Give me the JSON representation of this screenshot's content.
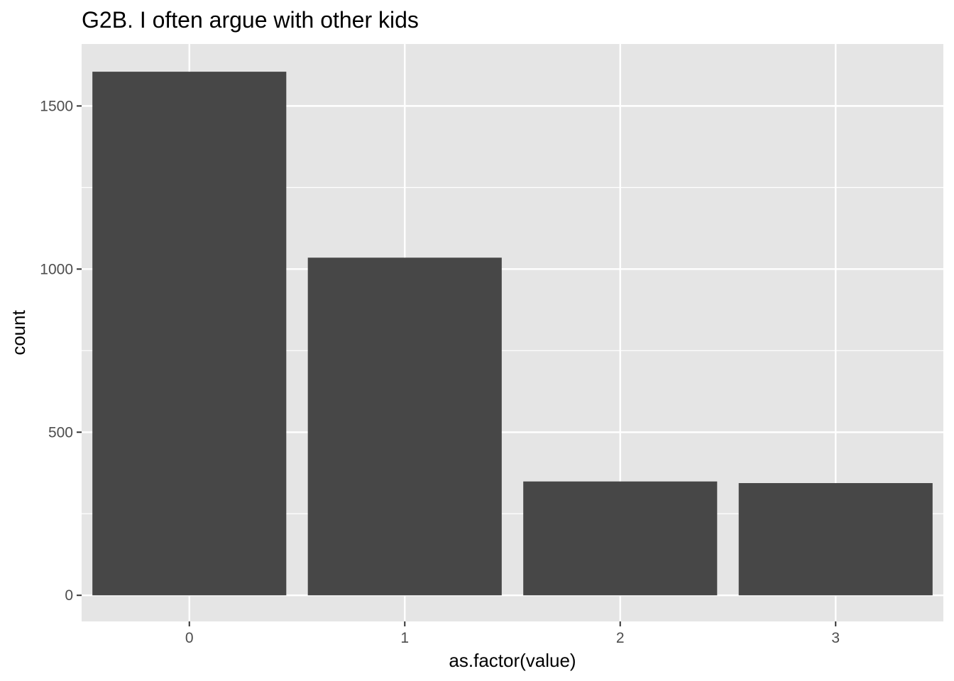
{
  "chart_data": {
    "type": "bar",
    "title": "G2B. I often argue with other kids",
    "xlabel": "as.factor(value)",
    "ylabel": "count",
    "categories": [
      "0",
      "1",
      "2",
      "3"
    ],
    "values": [
      1605,
      1035,
      349,
      344
    ],
    "ylim": [
      -80,
      1690
    ],
    "yticks": [
      0,
      500,
      1000,
      1500
    ],
    "grid": true,
    "legend": "none",
    "colors": {
      "panel": "#e5e5e5",
      "grid": "#ffffff",
      "bar": "#474747",
      "tick": "#333333"
    }
  }
}
